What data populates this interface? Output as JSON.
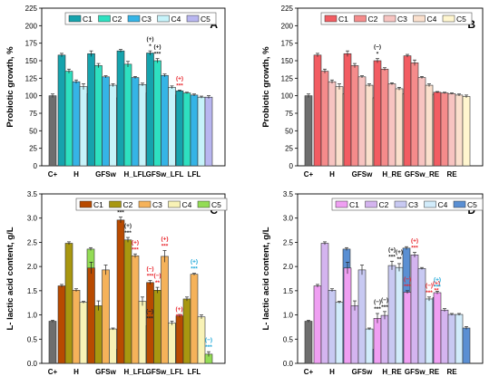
{
  "chart_data": [
    {
      "type": "bar",
      "panel_label": "A",
      "ylabel": "Probiotic growth, %",
      "ylim": [
        0,
        225
      ],
      "yticks": [
        0,
        25,
        50,
        75,
        100,
        125,
        150,
        175,
        200,
        225
      ],
      "categories": [
        "C+",
        "H",
        "GFSw",
        "H_LFL",
        "GFSw_LFL",
        "LFL"
      ],
      "legend": [
        "C1",
        "C2",
        "C3",
        "C4",
        "C5"
      ],
      "legend_position": "top-left",
      "colors": [
        "#16a3ad",
        "#2ee0c0",
        "#35b4e6",
        "#c6f3fa",
        "#b8b6f0"
      ],
      "control": {
        "value": 100,
        "err": 2.5,
        "color": "#6e6e6e"
      },
      "values": [
        [
          158,
          135,
          120,
          113,
          103
        ],
        [
          160,
          143,
          127,
          115,
          97
        ],
        [
          164,
          145,
          126,
          116,
          104
        ],
        [
          161,
          150,
          129,
          112,
          101
        ],
        [
          107,
          104,
          101,
          98,
          98
        ]
      ],
      "errors": [
        [
          2.5,
          3,
          2.5,
          4,
          1.5
        ],
        [
          4,
          3,
          1.5,
          2,
          2
        ],
        [
          2,
          4,
          1.5,
          2,
          1.5
        ],
        [
          3,
          3,
          2,
          2,
          1.5
        ],
        [
          1,
          1,
          1.5,
          1.5,
          2
        ]
      ],
      "annotations": [
        {
          "group": 3,
          "bar": 0,
          "lines": [
            "(+)",
            "*"
          ],
          "color": "#222222"
        },
        {
          "group": 3,
          "bar": 1,
          "lines": [
            "(+)",
            "***"
          ],
          "color": "#222222"
        },
        {
          "group": 4,
          "bar": 0,
          "lines": [
            "(+)",
            "***"
          ],
          "color": "#e8232a"
        }
      ]
    },
    {
      "type": "bar",
      "panel_label": "B",
      "ylabel": "Probiotic growth, %",
      "ylim": [
        0,
        225
      ],
      "yticks": [
        0,
        25,
        50,
        75,
        100,
        125,
        150,
        175,
        200,
        225
      ],
      "categories": [
        "C+",
        "H",
        "GFSw",
        "H_RE",
        "GFSw_RE",
        "RE"
      ],
      "legend": [
        "C1",
        "C2",
        "C3",
        "C4",
        "C5"
      ],
      "legend_position": "top-left",
      "colors": [
        "#f25c62",
        "#f58b8b",
        "#f7c4c1",
        "#fbe0cd",
        "#fff6cf"
      ],
      "control": {
        "value": 100,
        "err": 2.5,
        "color": "#6e6e6e"
      },
      "values": [
        [
          158,
          135,
          120,
          113,
          103
        ],
        [
          160,
          143,
          127,
          115,
          97
        ],
        [
          150,
          138,
          117,
          110,
          103
        ],
        [
          157,
          147,
          126,
          115,
          102
        ],
        [
          105,
          104,
          103,
          101,
          99
        ]
      ],
      "errors": [
        [
          2.5,
          3,
          2.5,
          4,
          1.5
        ],
        [
          4,
          3,
          1.5,
          2,
          2
        ],
        [
          3,
          2,
          1.5,
          2,
          1.5
        ],
        [
          2,
          4,
          1.5,
          2,
          1.5
        ],
        [
          1,
          1,
          1,
          1.5,
          2
        ]
      ],
      "annotations": [
        {
          "group": 2,
          "bar": 0,
          "lines": [
            "(−)",
            "*"
          ],
          "color": "#222222"
        }
      ]
    },
    {
      "type": "bar",
      "panel_label": "C",
      "ylabel": "L- lactic acid content, g/L",
      "ylim": [
        0,
        3.5
      ],
      "yticks": [
        0,
        0.5,
        1.0,
        1.5,
        2.0,
        2.5,
        3.0,
        3.5
      ],
      "categories": [
        "C+",
        "H",
        "GFSw",
        "H_LFL",
        "GFSw_LFL",
        "LFL"
      ],
      "legend": [
        "C1",
        "C2",
        "C3",
        "C4",
        "C5"
      ],
      "legend_position": "top-center",
      "colors": [
        "#b84a00",
        "#a89710",
        "#f5b25a",
        "#f8f2b6",
        "#93dc55"
      ],
      "control": {
        "value": 0.87,
        "err": 0.02,
        "color": "#6e6e6e"
      },
      "values": [
        [
          1.6,
          2.48,
          1.51,
          1.26,
          2.36
        ],
        [
          1.97,
          1.19,
          1.93,
          0.71,
          0.29
        ],
        [
          2.96,
          2.55,
          2.22,
          1.28,
          0.78
        ],
        [
          1.67,
          1.51,
          2.21,
          0.83,
          0.83
        ],
        [
          0.98,
          1.33,
          1.84,
          0.96,
          0.19
        ]
      ],
      "errors": [
        [
          0.03,
          0.03,
          0.03,
          0.02,
          0.03
        ],
        [
          0.12,
          0.1,
          0.1,
          0.02,
          0.06
        ],
        [
          0.06,
          0.05,
          0.04,
          0.09,
          0.05
        ],
        [
          0.04,
          0.06,
          0.12,
          0.04,
          0.05
        ],
        [
          0.03,
          0.04,
          0.02,
          0.04,
          0.05
        ]
      ],
      "annotations": [
        {
          "group": 2,
          "bar": 0,
          "lines": [
            "(+)",
            "***"
          ],
          "color": "#222222"
        },
        {
          "group": 2,
          "bar": 1,
          "lines": [
            "(+)",
            "***"
          ],
          "color": "#222222"
        },
        {
          "group": 2,
          "bar": 2,
          "lines": [
            "(+)",
            "***"
          ],
          "color": "#e8232a"
        },
        {
          "group": 2,
          "bar": 4,
          "lines": [
            "(−)",
            "***"
          ],
          "color": "#222222"
        },
        {
          "group": 3,
          "bar": 0,
          "lines": [
            "(−)",
            "***"
          ],
          "color": "#e8232a"
        },
        {
          "group": 3,
          "bar": 1,
          "lines": [
            "(−)",
            "**"
          ],
          "color": "#e8232a"
        },
        {
          "group": 3,
          "bar": 2,
          "lines": [
            "(+)",
            "***"
          ],
          "color": "#e8232a"
        },
        {
          "group": 3,
          "bar": 4,
          "lines": [
            "(+)",
            "***"
          ],
          "color": "#e8232a"
        },
        {
          "group": 4,
          "bar": 2,
          "lines": [
            "(+)",
            "***"
          ],
          "color": "#1aa7d8"
        },
        {
          "group": 4,
          "bar": 4,
          "lines": [
            "(−)",
            "***"
          ],
          "color": "#1aa7d8"
        }
      ]
    },
    {
      "type": "bar",
      "panel_label": "D",
      "ylabel": "L- lactic acid content, g/L",
      "ylim": [
        0,
        3.5
      ],
      "yticks": [
        0,
        0.5,
        1.0,
        1.5,
        2.0,
        2.5,
        3.0,
        3.5
      ],
      "categories": [
        "C+",
        "H",
        "GFSw",
        "H_RE",
        "GFSw_RE",
        "RE"
      ],
      "legend": [
        "C1",
        "C2",
        "C3",
        "C4",
        "C5"
      ],
      "legend_position": "top-center",
      "colors": [
        "#ef9ff2",
        "#d4b4ef",
        "#c8c9f2",
        "#d2ecfb",
        "#5a8fd3"
      ],
      "control": {
        "value": 0.87,
        "err": 0.02,
        "color": "#6e6e6e"
      },
      "values": [
        [
          1.6,
          2.48,
          1.51,
          1.26,
          2.36
        ],
        [
          1.97,
          1.19,
          1.93,
          0.71,
          0.29
        ],
        [
          0.93,
          0.99,
          2.02,
          1.98,
          2.38
        ],
        [
          1.47,
          2.24,
          1.96,
          1.33,
          1.36
        ],
        [
          1.46,
          1.1,
          1.01,
          1.01,
          0.73
        ]
      ],
      "errors": [
        [
          0.03,
          0.03,
          0.03,
          0.02,
          0.03
        ],
        [
          0.12,
          0.1,
          0.1,
          0.02,
          0.03
        ],
        [
          0.1,
          0.08,
          0.09,
          0.08,
          0.03
        ],
        [
          0.03,
          0.05,
          0.02,
          0.04,
          0.05
        ],
        [
          0.03,
          0.03,
          0.02,
          0.02,
          0.03
        ]
      ],
      "annotations": [
        {
          "group": 2,
          "bar": 0,
          "lines": [
            "(−)",
            "***"
          ],
          "color": "#222222"
        },
        {
          "group": 2,
          "bar": 1,
          "lines": [
            "(−)",
            "***"
          ],
          "color": "#222222"
        },
        {
          "group": 2,
          "bar": 2,
          "lines": [
            "(+)",
            "***"
          ],
          "color": "#222222"
        },
        {
          "group": 2,
          "bar": 3,
          "lines": [
            "(+)",
            "**"
          ],
          "color": "#222222"
        },
        {
          "group": 3,
          "bar": 0,
          "lines": [
            "(−)",
            "***"
          ],
          "color": "#e8232a"
        },
        {
          "group": 3,
          "bar": 1,
          "lines": [
            "(+)",
            "***"
          ],
          "color": "#e8232a"
        },
        {
          "group": 3,
          "bar": 3,
          "lines": [
            "(−)",
            "***"
          ],
          "color": "#e8232a"
        },
        {
          "group": 3,
          "bar": 4,
          "lines": [
            "(+)",
            "**"
          ],
          "color": "#e8232a"
        },
        {
          "group": 4,
          "bar": 0,
          "lines": [
            "(+)",
            "***"
          ],
          "color": "#1aa7d8"
        }
      ]
    }
  ]
}
